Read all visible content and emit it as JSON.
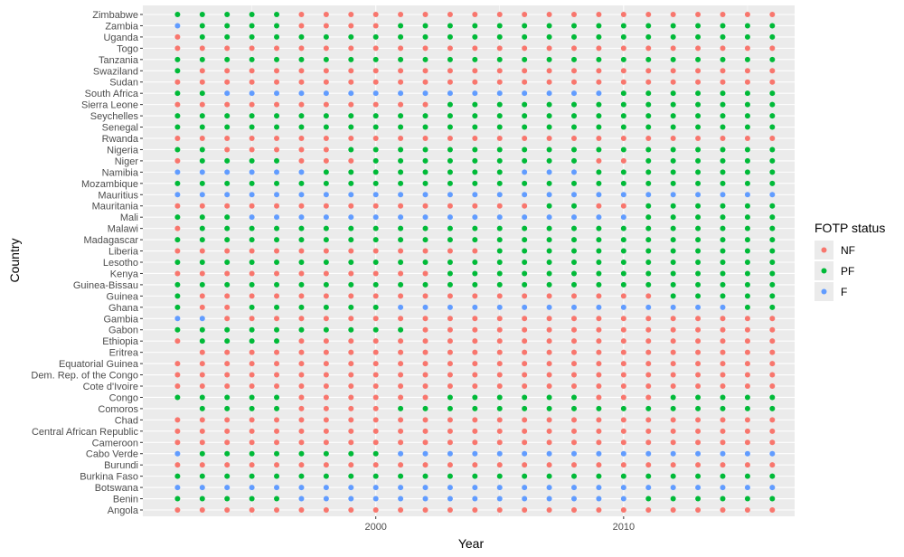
{
  "chart_data": {
    "type": "scatter",
    "xlabel": "Year",
    "ylabel": "Country",
    "xlim": [
      1990.6,
      2016.9
    ],
    "x_ticks": [
      2000,
      2010
    ],
    "years": [
      1992,
      1993,
      1994,
      1995,
      1996,
      1997,
      1998,
      1999,
      2000,
      2001,
      2002,
      2003,
      2004,
      2005,
      2006,
      2007,
      2008,
      2009,
      2010,
      2011,
      2012,
      2013,
      2014,
      2015,
      2016
    ],
    "legend": {
      "title": "FOTP status",
      "position": "right",
      "entries": [
        {
          "label": "NF",
          "color": "#F8766D"
        },
        {
          "label": "PF",
          "color": "#00BA38"
        },
        {
          "label": "F",
          "color": "#619CFF"
        }
      ]
    },
    "grid": true,
    "countries": [
      {
        "name": "Zimbabwe",
        "status": "PPPPPNNNNNNNNNNNNNNNNNNNN"
      },
      {
        "name": "Zambia",
        "status": "FPPPPNNNNPPPPPPPPPPPPPPPP"
      },
      {
        "name": "Uganda",
        "status": "NPPPPPPPPPPPPPPPPPPPPPPPP"
      },
      {
        "name": "Togo",
        "status": "NNNNNNNNNNNNNNNNNNNNNNNNN"
      },
      {
        "name": "Tanzania",
        "status": "PPPPPPPPPPPPPPPPPPPPPPPPP"
      },
      {
        "name": "Swaziland",
        "status": "PNNNNNNNNNNNNNNNNNNNNNNNN"
      },
      {
        "name": "Sudan",
        "status": "NNNNNNNNNNNNNNNNNNNNNNNNN"
      },
      {
        "name": "South Africa",
        "status": "PPFFFFFFFFFFFFFFFFPPPPPPP"
      },
      {
        "name": "Sierra Leone",
        "status": "NNNNNNNNNNNPPPPPPPPPPPPPP"
      },
      {
        "name": "Seychelles",
        "status": "PPPPPPPPPPPPPPPPPPPPPPPPP"
      },
      {
        "name": "Senegal",
        "status": "PPPPPPPPPPPPPPPPPPPPPPPPP"
      },
      {
        "name": "Rwanda",
        "status": "NNNNNNNNNNNNNNNNNNNNNNNNN"
      },
      {
        "name": "Nigeria",
        "status": "PPNNNNNPPPPPPPPPPPPPPPPPP"
      },
      {
        "name": "Niger",
        "status": "NPPPPNNNPPPPPPPPPNNPPPPPP"
      },
      {
        "name": "Namibia",
        "status": "FFFFFFPPPPPPPPFFFPPPPPPPP"
      },
      {
        "name": "Mozambique",
        "status": "PPPPPPPPPPPPPPPPPPPPPPPPP"
      },
      {
        "name": "Mauritius",
        "status": "FFFFFFFFFFFFFFFFFFFFFFFFF"
      },
      {
        "name": "Mauritania",
        "status": "NNNNNNNNNNNNNNNPPNNPPPPPP"
      },
      {
        "name": "Mali",
        "status": "PPPFFFFFFFFFFFFFFFFPPPPPP"
      },
      {
        "name": "Malawi",
        "status": "NPPPPPPPPPPPPPPPPPPPPPPPP"
      },
      {
        "name": "Madagascar",
        "status": "PPPPPPPPPPPPPPPPPPPPPPPPP"
      },
      {
        "name": "Liberia",
        "status": "NNNNNNNNNNNNNPPPPPPPPPPPP"
      },
      {
        "name": "Lesotho",
        "status": "PPPPPPPPPPPPPPPPPPPPPPPPP"
      },
      {
        "name": "Kenya",
        "status": "NNNNNNNNNNNPPPPPPPPPPPPPP"
      },
      {
        "name": "Guinea-Bissau",
        "status": "PPPPPPPPPPPPPPPPPPPPPPPPP"
      },
      {
        "name": "Guinea",
        "status": "PNNNNNNNNNNNNNNNNNNNPPPPP"
      },
      {
        "name": "Ghana",
        "status": "PNNPPPPPPFFFFFFFFFFFFFFPP"
      },
      {
        "name": "Gambia",
        "status": "FFNNNNNNNNNNNNNNNNNNNNNNN"
      },
      {
        "name": "Gabon",
        "status": "PPPPPPPPPPNNNNNNNNNNNNNNN"
      },
      {
        "name": "Ethiopia",
        "status": "NPPPPNNNNNNNNNNNNNNNNNNNN"
      },
      {
        "name": "Eritrea",
        "status": "-NNNNNNNNNNNNNNNNNNNNNNNN"
      },
      {
        "name": "Equatorial Guinea",
        "status": "NNNNNNNNNNNNNNNNNNNNNNNNN"
      },
      {
        "name": "Dem. Rep. of the Congo",
        "status": "NNNNNNNNNNNNNNNNNNNNNNNNN"
      },
      {
        "name": "Cote d'Ivoire",
        "status": "NNNNNNNNNNNNNNNNNNNNNNNNN"
      },
      {
        "name": "Congo",
        "status": "PPPPPNNNNNNPPPPPPNNNPPPPP"
      },
      {
        "name": "Comoros",
        "status": "-PPPPNNNNPPPPPPPPPPPPPPPP"
      },
      {
        "name": "Chad",
        "status": "NNNNNNNNNNNNNNNNNNNNNNNNN"
      },
      {
        "name": "Central African Republic",
        "status": "NNNNNNNNNNNNNNNNNNNNNNNNN"
      },
      {
        "name": "Cameroon",
        "status": "NNNNNNNNNNNNNNNNNNNNNNNNN"
      },
      {
        "name": "Cabo Verde",
        "status": "FPPPPPPPPFFFFFFFFFFFFFFFF"
      },
      {
        "name": "Burundi",
        "status": "NNNNNNNNNNNNNNNNNNNNNNNNN"
      },
      {
        "name": "Burkina Faso",
        "status": "PPPPPPPPPPPPPPPPPPPPPPPPP"
      },
      {
        "name": "Botswana",
        "status": "FFFFFFFFFFFFFFFFFFFFFFFFF"
      },
      {
        "name": "Benin",
        "status": "PPPPPFFFFFFFFFFFFFFPPPPPP"
      },
      {
        "name": "Angola",
        "status": "NNNNNNNNNNNNNNNNNNNNNNNNN"
      }
    ]
  }
}
